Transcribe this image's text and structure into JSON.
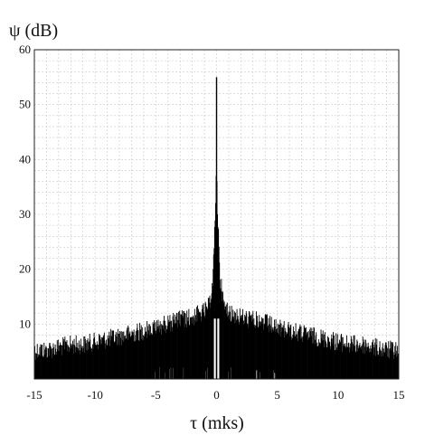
{
  "chart_data": {
    "type": "line",
    "title": "",
    "xlabel": "τ (mks)",
    "ylabel": "ψ (dB)",
    "xlim": [
      -15,
      15
    ],
    "ylim": [
      0,
      60
    ],
    "x_ticks": [
      "-15",
      "-10",
      "-5",
      "0",
      "5",
      "10",
      "15"
    ],
    "y_ticks": [
      "10",
      "20",
      "30",
      "40",
      "50",
      "60"
    ],
    "grid": true,
    "series": [
      {
        "name": "",
        "color": "#000000",
        "fill_to_zero": true,
        "x": [
          -15,
          -14,
          -13,
          -12,
          -11,
          -10,
          -9,
          -8,
          -7,
          -6,
          -5,
          -4,
          -3,
          -2,
          -1.5,
          -1,
          -0.6,
          -0.3,
          -0.12,
          -0.05,
          0,
          0.05,
          0.12,
          0.3,
          0.6,
          1,
          1.5,
          2,
          3,
          4,
          5,
          6,
          7,
          8,
          9,
          10,
          11,
          12,
          13,
          14,
          15
        ],
        "envelope": [
          7,
          7,
          7.5,
          8,
          8,
          8.5,
          9,
          9.5,
          10,
          10.5,
          11,
          12,
          12.5,
          13,
          13.5,
          14,
          15,
          20,
          30,
          35,
          55,
          35,
          30,
          20,
          15,
          14,
          13.5,
          13,
          12.5,
          12,
          11,
          10.5,
          10,
          9.5,
          9,
          8.5,
          8,
          8,
          7.5,
          7,
          7
        ]
      }
    ]
  }
}
